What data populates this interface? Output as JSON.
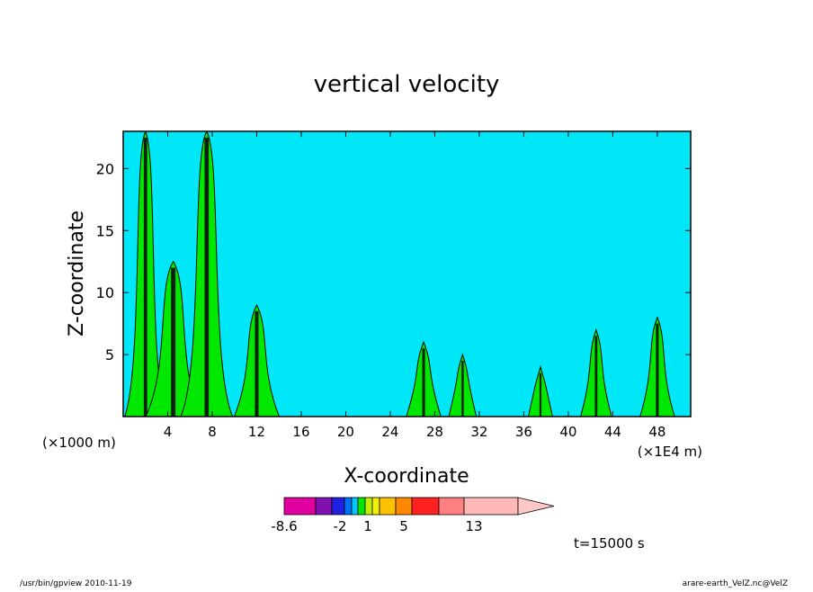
{
  "chart_data": {
    "type": "heatmap",
    "title": "vertical velocity",
    "xlabel": "X-coordinate",
    "ylabel": "Z-coordinate",
    "x_unit_left": "(×1000 m)",
    "x_unit_right": "(×1E4 m)",
    "xlim": [
      0,
      51
    ],
    "ylim": [
      0,
      23
    ],
    "x_ticks": [
      4,
      8,
      12,
      16,
      20,
      24,
      28,
      32,
      36,
      40,
      44,
      48
    ],
    "y_ticks": [
      5,
      10,
      15,
      20
    ],
    "grid": false,
    "background_level_color": "#00e8f8",
    "updraft_color": "#00e800",
    "plumes": [
      {
        "x": 2.0,
        "z_top": 23.0,
        "w": 1.2
      },
      {
        "x": 4.5,
        "z_top": 12.5,
        "w": 1.6
      },
      {
        "x": 7.5,
        "z_top": 23.0,
        "w": 1.5
      },
      {
        "x": 12.0,
        "z_top": 9.0,
        "w": 1.3
      },
      {
        "x": 27.0,
        "z_top": 6.0,
        "w": 1.0
      },
      {
        "x": 30.5,
        "z_top": 5.0,
        "w": 0.8
      },
      {
        "x": 37.5,
        "z_top": 4.0,
        "w": 0.7
      },
      {
        "x": 42.5,
        "z_top": 7.0,
        "w": 0.9
      },
      {
        "x": 48.0,
        "z_top": 8.0,
        "w": 1.0
      }
    ],
    "colorbar": {
      "colors": [
        "#e000a0",
        "#8010b0",
        "#2020e0",
        "#0070ff",
        "#00c8ff",
        "#00e800",
        "#c0f000",
        "#f0f000",
        "#ffc000",
        "#ff8800",
        "#ff2020",
        "#ff8080",
        "#ffb8b8",
        "#ffc8c8"
      ],
      "labels": [
        "-8.6",
        "-2",
        "1",
        "5",
        "13"
      ]
    }
  },
  "time_label": "t=15000 s",
  "footer": {
    "left": "/usr/bin/gpview   2010-11-19",
    "right": "arare-earth_VelZ.nc@VelZ"
  }
}
